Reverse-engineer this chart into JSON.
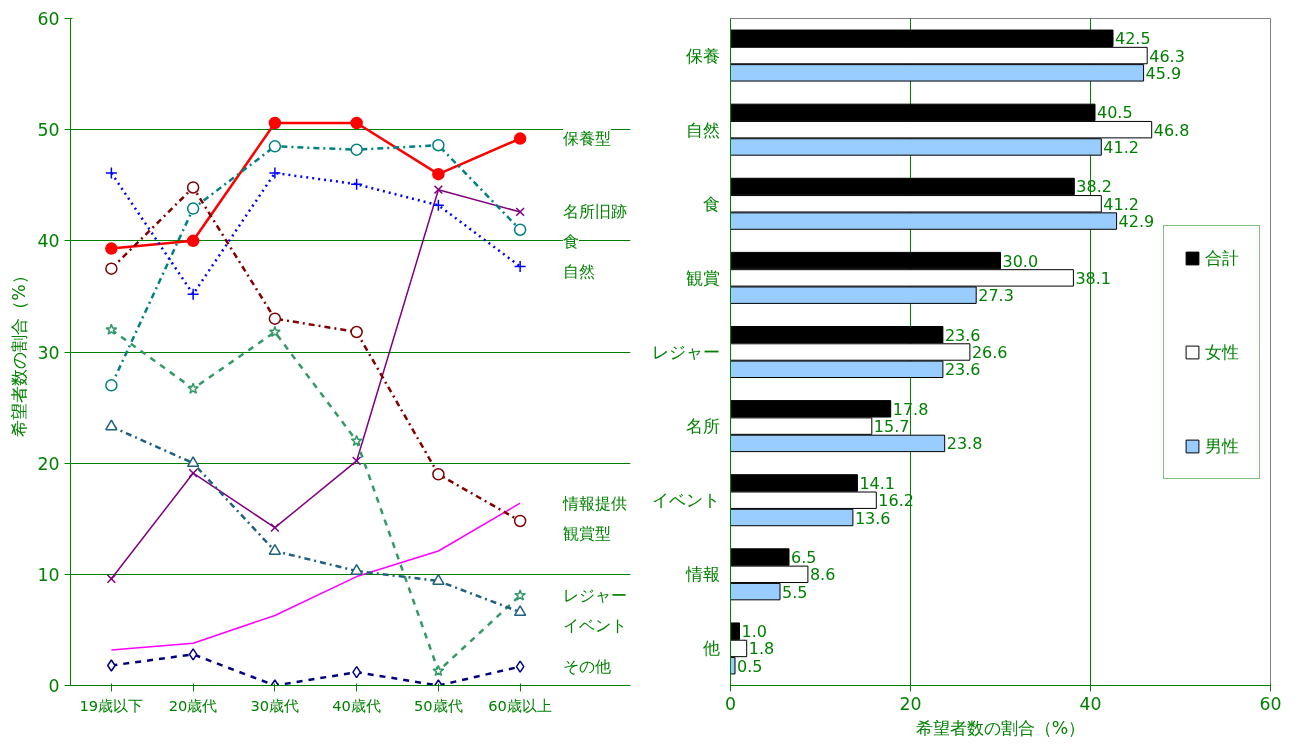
{
  "chart_data": [
    {
      "type": "line",
      "categories": [
        "19歳以下",
        "20歳代",
        "30歳代",
        "40歳代",
        "50歳代",
        "60歳以上"
      ],
      "ylabel": "希望者数の割合（%）",
      "ylim": [
        0,
        60
      ],
      "yticks": [
        0,
        10,
        20,
        30,
        40,
        50,
        60
      ],
      "grid": "y",
      "legend": false,
      "series": [
        {
          "name": "保養型",
          "color": "#ff0000",
          "marker": "circle",
          "line_style": "solid",
          "values": [
            39.3,
            40.0,
            50.6,
            50.6,
            46.0,
            49.2
          ]
        },
        {
          "name": "名所旧跡",
          "color": "#800080",
          "marker": "x",
          "line_style": "solid",
          "values": [
            9.6,
            19.1,
            14.2,
            20.2,
            44.6,
            42.6
          ]
        },
        {
          "name": "食",
          "color": "#008080",
          "marker": "circle",
          "line_style": "dashdot",
          "values": [
            27.0,
            42.9,
            48.5,
            48.2,
            48.6,
            41.0
          ]
        },
        {
          "name": "自然",
          "color": "#0000ff",
          "marker": "cross",
          "line_style": "dotted",
          "values": [
            46.1,
            35.2,
            46.1,
            45.1,
            43.2,
            37.7
          ]
        },
        {
          "name": "情報提供",
          "color": "#ff00ff",
          "line_style": "solid",
          "values": [
            3.2,
            3.8,
            6.3,
            9.8,
            12.1,
            16.4
          ]
        },
        {
          "name": "観賞型",
          "color": "#800000",
          "marker": "circle",
          "line_style": "dashdot",
          "values": [
            37.5,
            44.8,
            33.0,
            31.8,
            19.0,
            14.8
          ]
        },
        {
          "name": "レジャー",
          "color": "#339966",
          "marker": "star",
          "line_style": "dashed",
          "values": [
            32.0,
            26.7,
            31.8,
            22.0,
            1.3,
            8.1
          ]
        },
        {
          "name": "イベント",
          "color": "#1f5f7f",
          "marker": "triangle",
          "line_style": "dashdot",
          "values": [
            23.3,
            20.0,
            12.1,
            10.3,
            9.4,
            6.6
          ]
        },
        {
          "name": "その他",
          "color": "#000080",
          "marker": "diamond",
          "line_style": "dashed",
          "values": [
            1.8,
            2.8,
            0.0,
            1.2,
            0.0,
            1.7
          ]
        }
      ]
    },
    {
      "type": "bar",
      "orientation": "horizontal",
      "categories": [
        "保養",
        "自然",
        "食",
        "観賞",
        "レジャー",
        "名所",
        "イベント",
        "情報",
        "他"
      ],
      "xlabel": "希望者数の割合（%）",
      "xlim": [
        0,
        60
      ],
      "xticks": [
        0,
        20,
        40,
        60
      ],
      "grid": "x",
      "legend": "right",
      "series": [
        {
          "name": "合計",
          "color": "#000000",
          "values": [
            42.5,
            40.5,
            38.2,
            30.0,
            23.6,
            17.8,
            14.1,
            6.5,
            1.0
          ],
          "value_labels": [
            "42.5",
            "40.5",
            "38.2",
            "30.0",
            "23.6",
            "17.8",
            "14.1",
            "6.5",
            "1.0"
          ]
        },
        {
          "name": "女性",
          "color": "#ffffff",
          "values": [
            46.3,
            46.8,
            41.2,
            38.1,
            26.6,
            15.7,
            16.2,
            8.6,
            1.8
          ],
          "value_labels": [
            "46.3",
            "46.8",
            "41.2",
            "38.1",
            "26.6",
            "15.7",
            "16.2",
            "8.6",
            "1.8"
          ]
        },
        {
          "name": "男性",
          "color": "#99ccff",
          "values": [
            45.9,
            41.2,
            42.9,
            27.3,
            23.6,
            23.8,
            13.6,
            5.5,
            0.5
          ],
          "value_labels": [
            "45.9",
            "41.2",
            "42.9",
            "27.3",
            "23.6",
            "23.8",
            "13.6",
            "5.5",
            "0.5"
          ]
        }
      ]
    }
  ]
}
